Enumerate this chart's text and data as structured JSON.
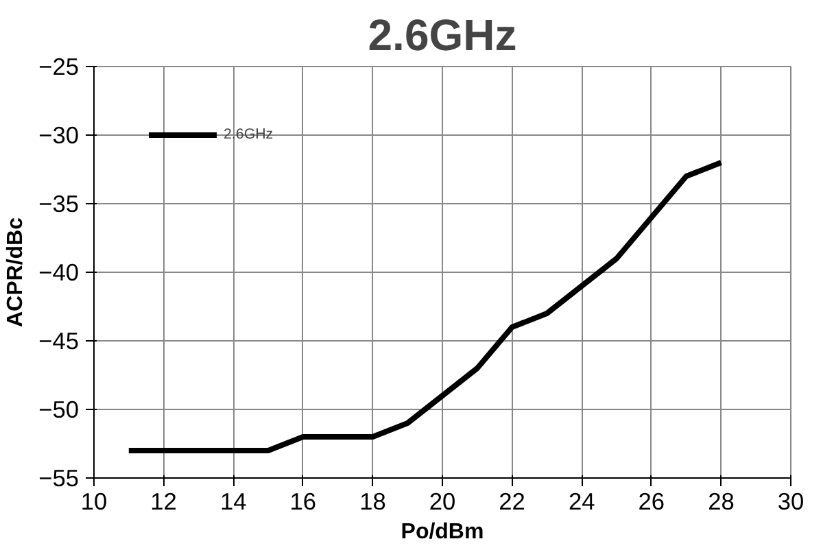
{
  "chart_data": {
    "type": "line",
    "title": "2.6GHz",
    "xlabel": "Po/dBm",
    "ylabel": "ACPR/dBc",
    "x": [
      11,
      12,
      13,
      14,
      15,
      16,
      17,
      18,
      19,
      20,
      21,
      22,
      23,
      24,
      25,
      26,
      27,
      28
    ],
    "series": [
      {
        "name": "2.6GHz",
        "color": "#000000",
        "values": [
          -53,
          -53,
          -53,
          -53,
          -53,
          -52,
          -52,
          -52,
          -51,
          -49,
          -47,
          -44,
          -43,
          -41,
          -39,
          -36,
          -33,
          -32
        ]
      }
    ],
    "xlim": [
      10,
      30
    ],
    "xticks": [
      10,
      12,
      14,
      16,
      18,
      20,
      22,
      24,
      26,
      28,
      30
    ],
    "ylim": [
      -55,
      -25
    ],
    "yticks": [
      -55,
      -50,
      -45,
      -40,
      -35,
      -30,
      -25
    ],
    "grid": true,
    "legend": "top left",
    "marker": "none",
    "line_style": "solid"
  }
}
